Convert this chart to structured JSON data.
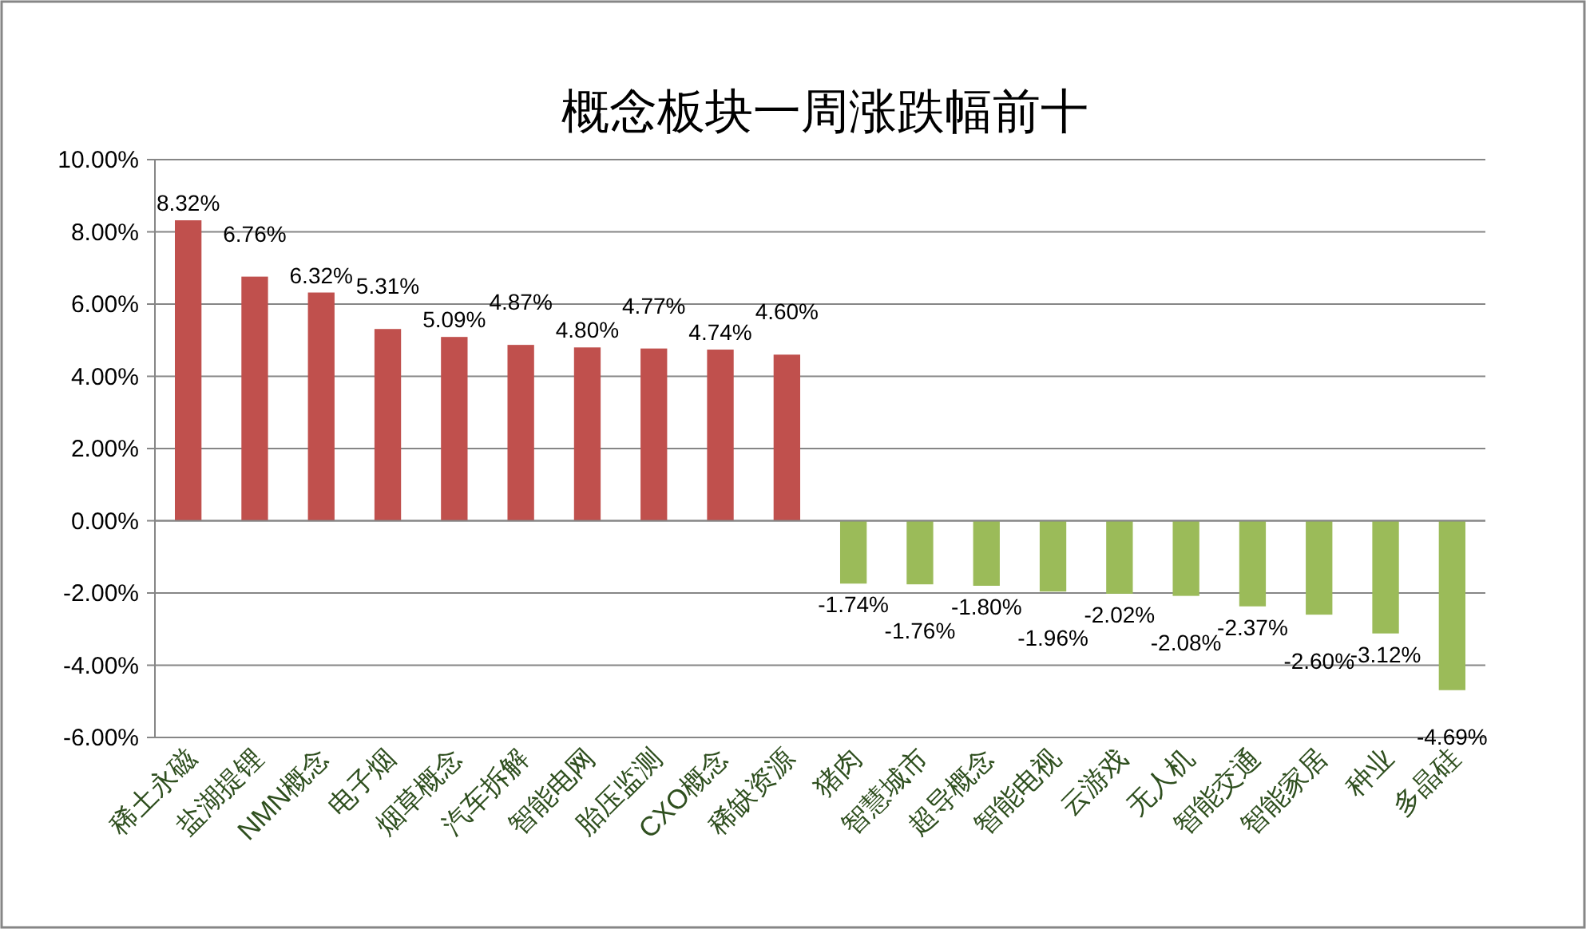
{
  "chart_data": {
    "type": "bar",
    "title": "概念板块一周涨跌幅前十",
    "categories": [
      "稀土永磁",
      "盐湖提锂",
      "NMN概念",
      "电子烟",
      "烟草概念",
      "汽车拆解",
      "智能电网",
      "胎压监测",
      "CXO概念",
      "稀缺资源",
      "猪肉",
      "智慧城市",
      "超导概念",
      "智能电视",
      "云游戏",
      "无人机",
      "智能交通",
      "智能家居",
      "种业",
      "多晶硅"
    ],
    "values": [
      8.32,
      6.76,
      6.32,
      5.31,
      5.09,
      4.87,
      4.8,
      4.77,
      4.74,
      4.6,
      -1.74,
      -1.76,
      -1.8,
      -1.96,
      -2.02,
      -2.08,
      -2.37,
      -2.6,
      -3.12,
      -4.69
    ],
    "value_labels": [
      "8.32%",
      "6.76%",
      "6.32%",
      "5.31%",
      "5.09%",
      "4.87%",
      "4.80%",
      "4.77%",
      "4.74%",
      "4.60%",
      "-1.74%",
      "-1.76%",
      "-1.80%",
      "-1.96%",
      "-2.02%",
      "-2.08%",
      "-2.37%",
      "-2.60%",
      "-3.12%",
      "-4.69%"
    ],
    "colors": [
      "#c0504d",
      "#c0504d",
      "#c0504d",
      "#c0504d",
      "#c0504d",
      "#c0504d",
      "#c0504d",
      "#c0504d",
      "#c0504d",
      "#c0504d",
      "#9bbb59",
      "#9bbb59",
      "#9bbb59",
      "#9bbb59",
      "#9bbb59",
      "#9bbb59",
      "#9bbb59",
      "#9bbb59",
      "#9bbb59",
      "#9bbb59"
    ],
    "ylim": [
      -6,
      10
    ],
    "yticks": [
      {
        "value": -6,
        "label": "-6.00%"
      },
      {
        "value": -4,
        "label": "-4.00%"
      },
      {
        "value": -2,
        "label": "-2.00%"
      },
      {
        "value": 0,
        "label": "0.00%"
      },
      {
        "value": 2,
        "label": "2.00%"
      },
      {
        "value": 4,
        "label": "4.00%"
      },
      {
        "value": 6,
        "label": "6.00%"
      },
      {
        "value": 8,
        "label": "8.00%"
      },
      {
        "value": 10,
        "label": "10.00%"
      }
    ],
    "grid": "y"
  }
}
